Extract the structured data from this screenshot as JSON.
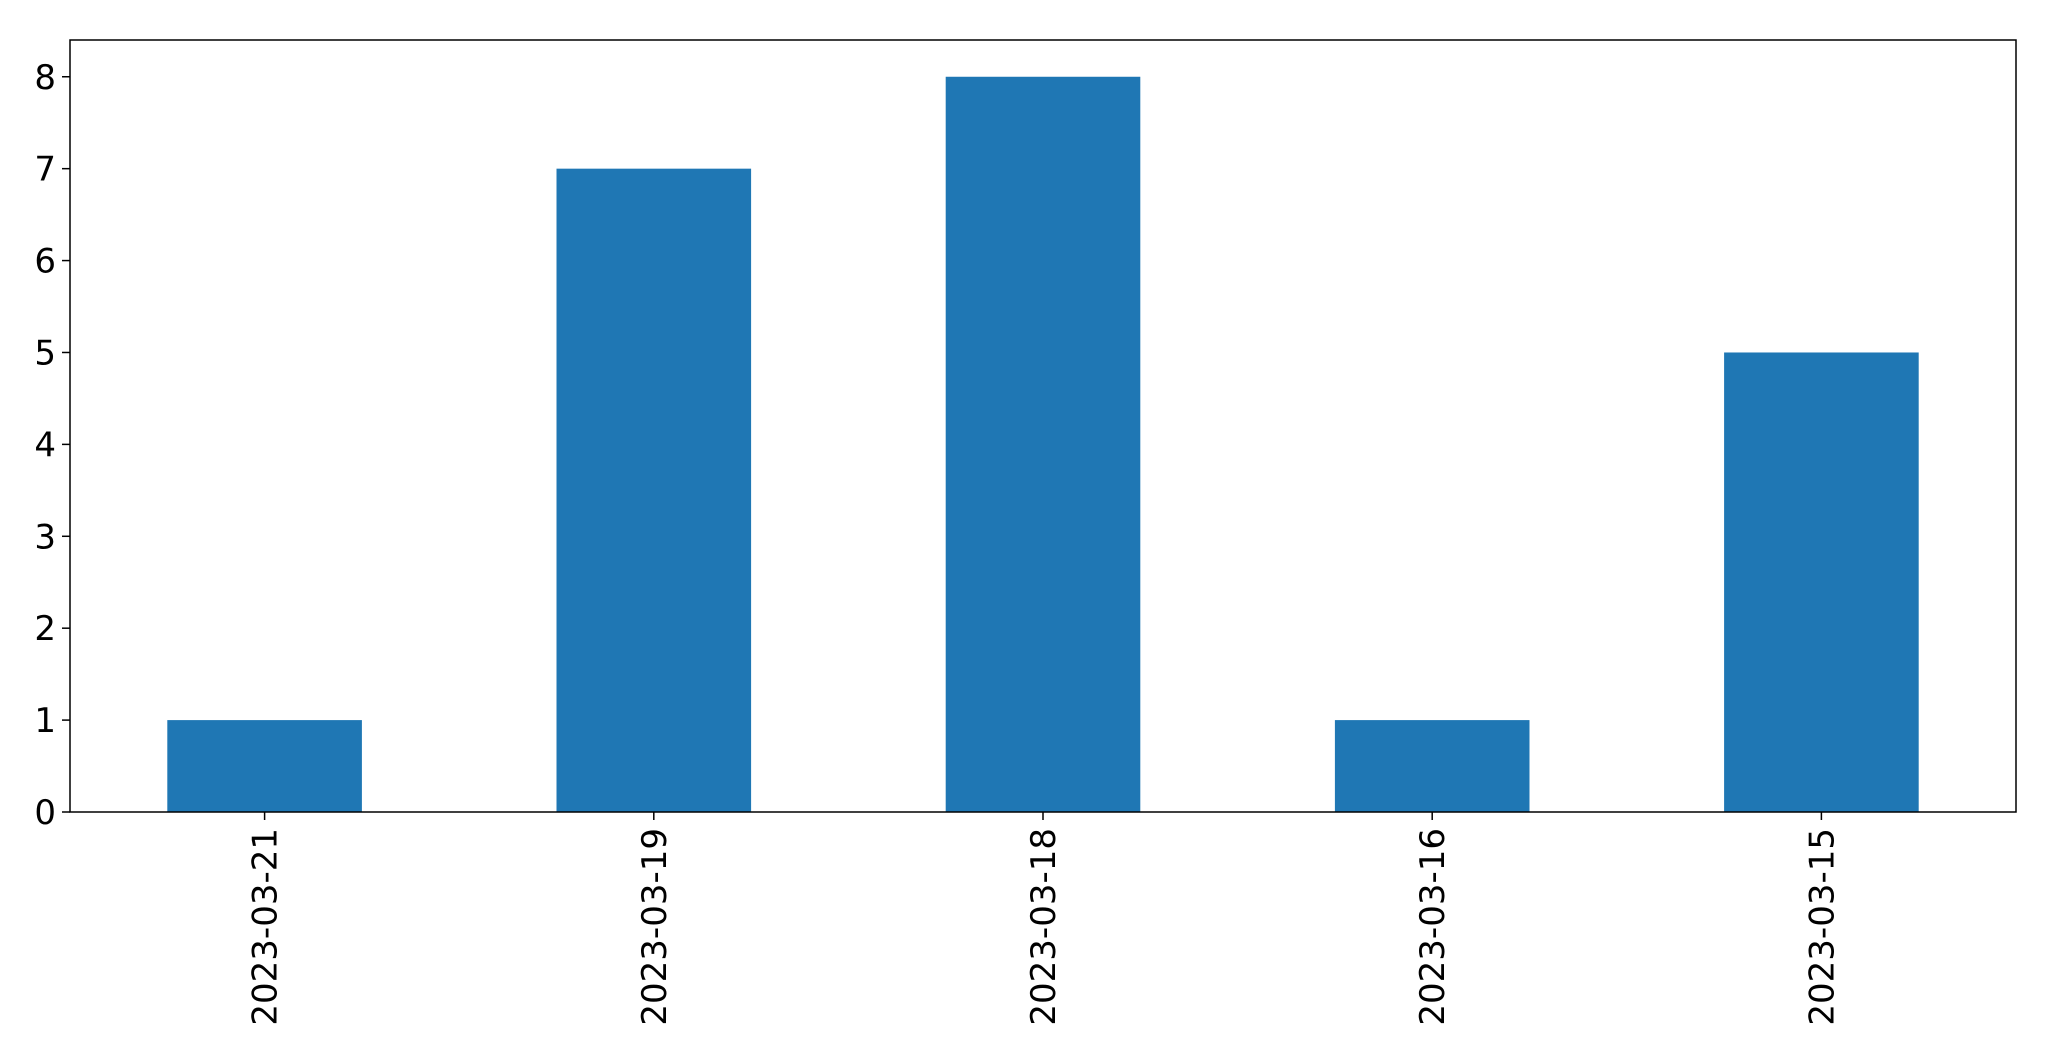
{
  "chart_data": {
    "type": "bar",
    "categories": [
      "2023-03-21",
      "2023-03-19",
      "2023-03-18",
      "2023-03-16",
      "2023-03-15"
    ],
    "values": [
      1,
      7,
      8,
      1,
      5
    ],
    "title": "",
    "xlabel": "",
    "ylabel": "",
    "ylim": [
      0,
      8.4
    ],
    "yticks": [
      0,
      1,
      2,
      3,
      4,
      5,
      6,
      7,
      8
    ],
    "grid": false,
    "legend": "none",
    "bar_color": "#1f77b4"
  }
}
